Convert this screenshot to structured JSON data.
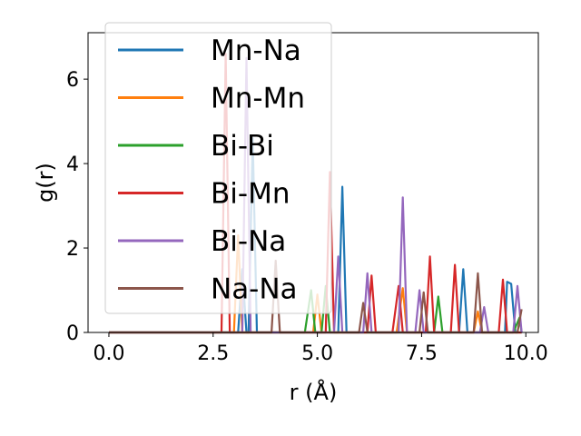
{
  "chart_data": {
    "type": "line",
    "title": "",
    "xlabel": "r (Å)",
    "ylabel": "g(r)",
    "xlim": [
      -0.5,
      10.3
    ],
    "ylim": [
      0,
      7.1
    ],
    "x_ticks": [
      0.0,
      2.5,
      5.0,
      7.5,
      10.0
    ],
    "x_tick_labels": [
      "0.0",
      "2.5",
      "5.0",
      "7.5",
      "10.0"
    ],
    "y_ticks": [
      0,
      2,
      4,
      6
    ],
    "y_tick_labels": [
      "0",
      "2",
      "4",
      "6"
    ],
    "grid": false,
    "legend_position": "top-left",
    "series": [
      {
        "name": "Mn-Na",
        "color": "#1f77b4",
        "points": [
          [
            0,
            0
          ],
          [
            3.1,
            0
          ],
          [
            3.2,
            1.5
          ],
          [
            3.3,
            0
          ],
          [
            3.35,
            0
          ],
          [
            3.45,
            4.6
          ],
          [
            3.55,
            0
          ],
          [
            5.5,
            0
          ],
          [
            5.6,
            3.45
          ],
          [
            5.7,
            0
          ],
          [
            8.4,
            0
          ],
          [
            8.5,
            1.5
          ],
          [
            8.6,
            0
          ],
          [
            9.5,
            0
          ],
          [
            9.55,
            1.2
          ],
          [
            9.65,
            1.15
          ],
          [
            9.75,
            0
          ],
          [
            9.9,
            0
          ]
        ]
      },
      {
        "name": "Mn-Mn",
        "color": "#ff7f0e",
        "points": [
          [
            0,
            0
          ],
          [
            3.0,
            0
          ],
          [
            3.1,
            2.3
          ],
          [
            3.2,
            0
          ],
          [
            4.9,
            0
          ],
          [
            5.0,
            0.9
          ],
          [
            5.1,
            0
          ],
          [
            6.9,
            0
          ],
          [
            7.05,
            1.05
          ],
          [
            7.15,
            0
          ],
          [
            8.75,
            0
          ],
          [
            8.85,
            0.5
          ],
          [
            8.95,
            0
          ],
          [
            9.9,
            0
          ]
        ]
      },
      {
        "name": "Bi-Bi",
        "color": "#2ca02c",
        "points": [
          [
            0,
            0
          ],
          [
            4.7,
            0
          ],
          [
            4.85,
            1.0
          ],
          [
            4.95,
            0
          ],
          [
            5.1,
            0
          ],
          [
            5.2,
            1.1
          ],
          [
            5.3,
            0
          ],
          [
            7.8,
            0
          ],
          [
            7.9,
            0.85
          ],
          [
            8.0,
            0
          ],
          [
            9.7,
            0
          ],
          [
            9.85,
            0.35
          ],
          [
            9.9,
            0
          ]
        ]
      },
      {
        "name": "Bi-Mn",
        "color": "#d62728",
        "points": [
          [
            0,
            0
          ],
          [
            2.7,
            0
          ],
          [
            2.8,
            6.6
          ],
          [
            2.9,
            0
          ],
          [
            5.2,
            0
          ],
          [
            5.3,
            3.8
          ],
          [
            5.4,
            0
          ],
          [
            6.2,
            0
          ],
          [
            6.3,
            1.35
          ],
          [
            6.4,
            0
          ],
          [
            6.8,
            0
          ],
          [
            6.95,
            1.1
          ],
          [
            7.05,
            0
          ],
          [
            7.6,
            0
          ],
          [
            7.7,
            1.8
          ],
          [
            7.8,
            0
          ],
          [
            8.2,
            0
          ],
          [
            8.3,
            1.6
          ],
          [
            8.4,
            0
          ],
          [
            9.35,
            0
          ],
          [
            9.45,
            1.25
          ],
          [
            9.55,
            0
          ],
          [
            9.9,
            0
          ]
        ]
      },
      {
        "name": "Bi-Na",
        "color": "#9467bd",
        "points": [
          [
            0,
            0
          ],
          [
            3.2,
            0
          ],
          [
            3.3,
            6.5
          ],
          [
            3.4,
            0
          ],
          [
            5.4,
            0
          ],
          [
            5.5,
            1.8
          ],
          [
            5.6,
            0
          ],
          [
            6.1,
            0
          ],
          [
            6.2,
            1.4
          ],
          [
            6.3,
            0
          ],
          [
            6.95,
            0
          ],
          [
            7.05,
            3.2
          ],
          [
            7.15,
            0
          ],
          [
            7.35,
            0
          ],
          [
            7.45,
            1.0
          ],
          [
            7.55,
            0
          ],
          [
            8.9,
            0
          ],
          [
            9.0,
            0.6
          ],
          [
            9.1,
            0
          ],
          [
            9.7,
            0
          ],
          [
            9.8,
            1.1
          ],
          [
            9.9,
            0
          ]
        ]
      },
      {
        "name": "Na-Na",
        "color": "#8c564b",
        "points": [
          [
            0,
            0
          ],
          [
            3.9,
            0
          ],
          [
            4.0,
            1.7
          ],
          [
            4.1,
            0
          ],
          [
            6.0,
            0
          ],
          [
            6.1,
            0.7
          ],
          [
            6.2,
            0
          ],
          [
            7.45,
            0
          ],
          [
            7.55,
            0.95
          ],
          [
            7.65,
            0
          ],
          [
            8.75,
            0
          ],
          [
            8.85,
            1.4
          ],
          [
            8.95,
            0
          ],
          [
            9.8,
            0
          ],
          [
            9.9,
            0.55
          ]
        ]
      }
    ]
  }
}
